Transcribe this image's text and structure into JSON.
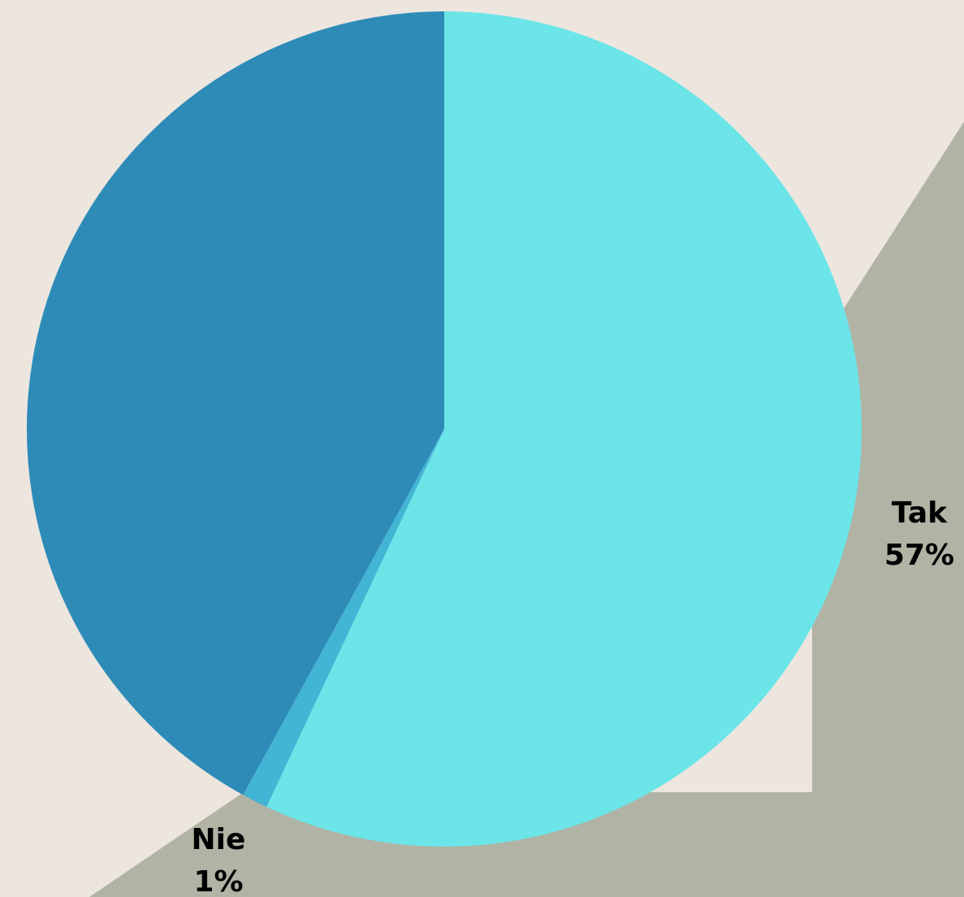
{
  "chart_data": {
    "type": "pie",
    "start": "top",
    "direction": "clockwise",
    "slices": [
      {
        "label": "Tak",
        "value": 57,
        "value_label": "57%",
        "color": "#6BE5E8"
      },
      {
        "label": "Nie",
        "value": 1,
        "value_label": "1%",
        "color": "#43B5D4"
      },
      {
        "label": "",
        "value": 42,
        "color": "#2E8BB8"
      }
    ]
  },
  "colors": {
    "background": "#ECE6DF",
    "accent_shape": "#B1B3A5"
  }
}
